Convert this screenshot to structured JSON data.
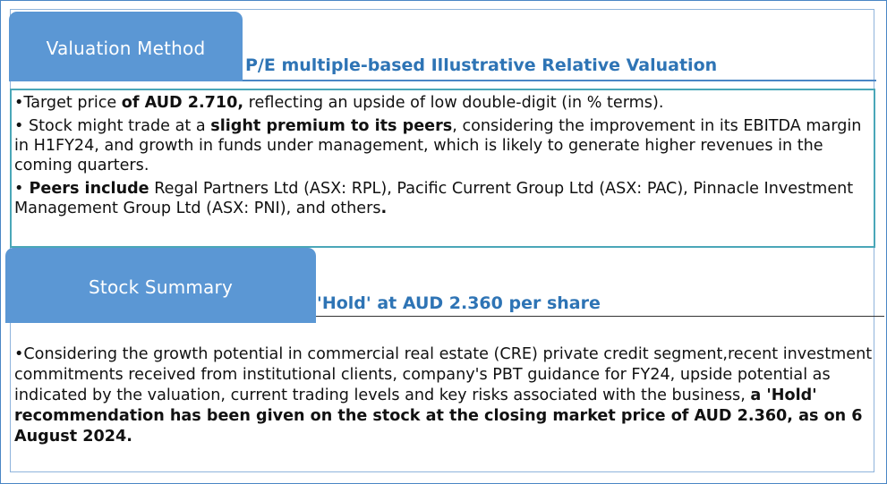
{
  "valuation": {
    "tab_label": "Valuation Method",
    "heading": "P/E multiple-based Illustrative Relative Valuation",
    "bullet1": {
      "bullet": "•",
      "text1": "Target price ",
      "bold1": "of AUD 2.710,",
      "text2": " reflecting an upside of low double-digit (in % terms)."
    },
    "bullet2": {
      "bullet": "•",
      "text1": " Stock might trade at a ",
      "bold1": "slight premium to its peers",
      "text2": ", considering the improvement in its EBITDA margin in H1FY24, and growth in funds under management, which is likely to generate higher revenues in the coming quarters."
    },
    "bullet3": {
      "bullet": "•",
      "bold1": " Peers include",
      "text1": " Regal Partners Ltd (ASX: RPL), Pacific Current Group Ltd (ASX: PAC), Pinnacle Investment Management Group Ltd (ASX: PNI), and others",
      "bold2": "."
    }
  },
  "summary": {
    "tab_label": "Stock Summary",
    "heading": "'Hold' at AUD 2.360 per share",
    "bullet1": {
      "bullet": "•",
      "text1": "Considering the growth potential in commercial real estate (CRE) private credit segment,recent investment commitments received from institutional clients, company's PBT guidance for FY24, upside potential as indicated by the valuation, current trading levels and key risks associated with the business, ",
      "bold1": "a 'Hold' recommendation has been given on the stock at the closing market price of AUD 2.360, as on 6 August 2024."
    }
  },
  "colors": {
    "tab": "#5b97d4",
    "heading": "#2e74b5",
    "box_border": "#4aa7b8",
    "frame": "#4a86c5"
  }
}
